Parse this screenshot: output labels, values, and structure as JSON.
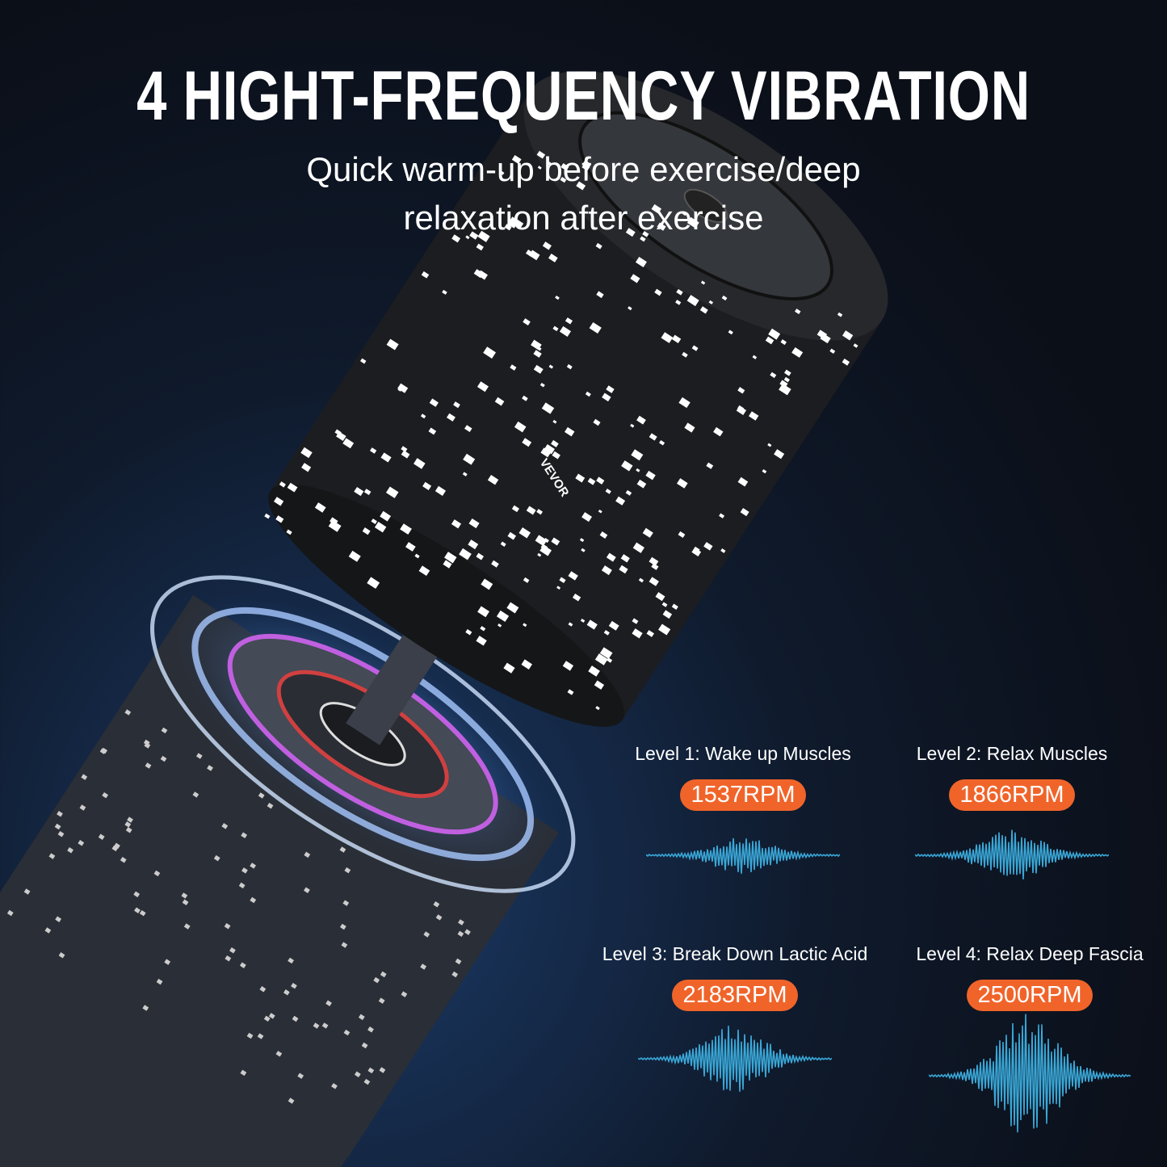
{
  "title": "4 HIGHT-FREQUENCY VIBRATION",
  "subtitle": "Quick warm-up before exercise/deep relaxation after exercise",
  "brand": "VEVOR",
  "colors": {
    "accent": "#f0642a",
    "wave": "#3aa8d8",
    "background": "#0d1420"
  },
  "levels": [
    {
      "label": "Level 1: Wake up Muscles",
      "rpm": "1537RPM"
    },
    {
      "label": "Level 2: Relax Muscles",
      "rpm": "1866RPM"
    },
    {
      "label": "Level 3: Break Down Lactic Acid",
      "rpm": "2183RPM"
    },
    {
      "label": "Level 4: Relax Deep Fascia",
      "rpm": "2500RPM"
    }
  ]
}
